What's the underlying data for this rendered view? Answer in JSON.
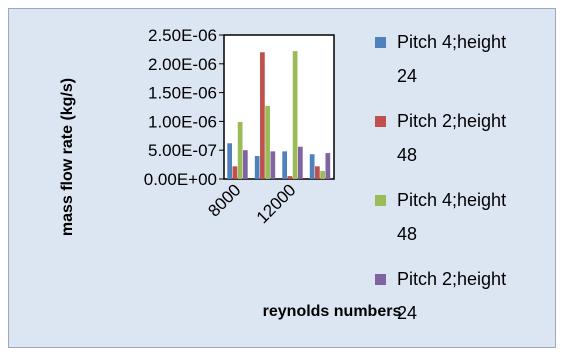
{
  "chart_data": {
    "type": "bar",
    "title": "",
    "xlabel": "reynolds numbers",
    "ylabel": "mass flow rate (kg/s)",
    "ylim": [
      0,
      2.5e-06
    ],
    "yticks": [
      "0.00E+00",
      "5.00E-07",
      "1.00E-06",
      "1.50E-06",
      "2.00E-06",
      "2.50E-06"
    ],
    "ytick_values": [
      0,
      5e-07,
      1e-06,
      1.5e-06,
      2e-06,
      2.5e-06
    ],
    "categories": [
      "8000",
      "",
      "12000",
      ""
    ],
    "grid": false,
    "legend_position": "right",
    "series": [
      {
        "name": "Pitch 4;height 24",
        "color": "#4f81bd",
        "values": [
          6.2e-07,
          4e-07,
          4.8e-07,
          4.3e-07
        ]
      },
      {
        "name": "Pitch 2;height 48",
        "color": "#c0504d",
        "values": [
          2.2e-07,
          2.2e-06,
          5e-08,
          2.2e-07
        ]
      },
      {
        "name": "Pitch 4;height 48",
        "color": "#9bbb59",
        "values": [
          9.9e-07,
          1.27e-06,
          2.22e-06,
          1.4e-07
        ]
      },
      {
        "name": "Pitch 2;height 24",
        "color": "#8064a2",
        "values": [
          5e-07,
          4.8e-07,
          5.6e-07,
          4.5e-07
        ]
      }
    ]
  }
}
